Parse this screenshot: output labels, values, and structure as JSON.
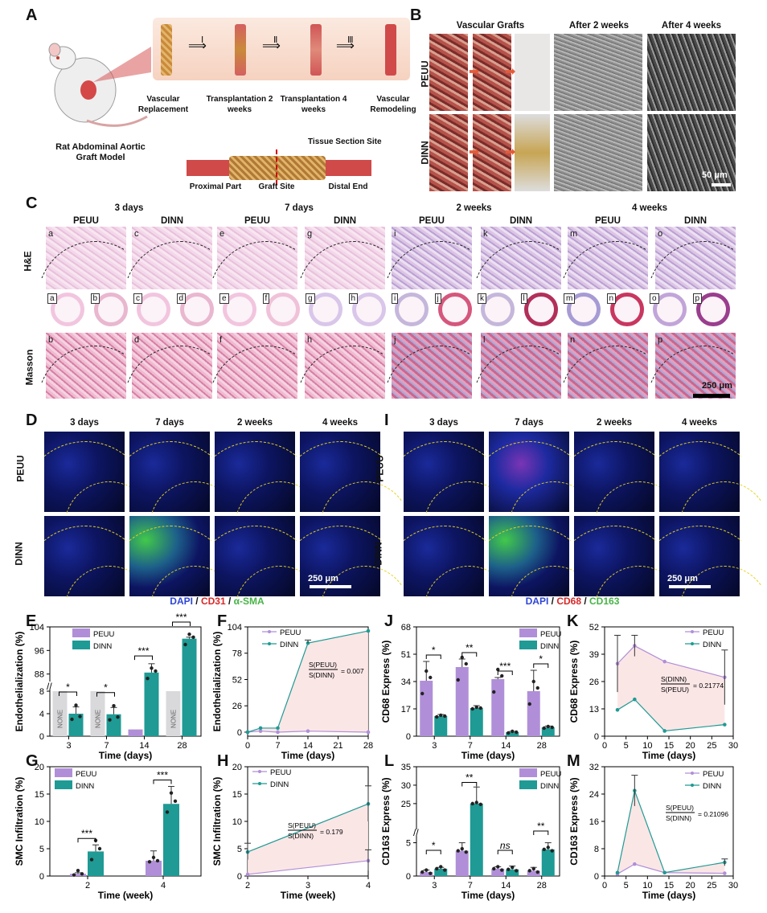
{
  "panel_letters": {
    "A": "A",
    "B": "B",
    "C": "C",
    "D": "D",
    "E": "E",
    "F": "F",
    "G": "G",
    "H": "H",
    "I": "I",
    "J": "J",
    "K": "K",
    "L": "L",
    "M": "M"
  },
  "panelA": {
    "model_title": "Rat Abdominal Aortic Graft Model",
    "step_1": "Ⅰ",
    "step_2": "Ⅱ",
    "step_3": "Ⅲ",
    "stage_1": "Vascular Replacement",
    "stage_2": "Transplantation 2 weeks",
    "stage_3": "Transplantation 4 weeks",
    "stage_4": "Vascular Remodeling",
    "tissue_site": "Tissue Section Site",
    "proximal": "Proximal Part",
    "graft_site": "Graft Site",
    "distal": "Distal End"
  },
  "panelB": {
    "col_1": "Vascular Grafts",
    "col_2": "After 2 weeks",
    "col_3": "After 4 weeks",
    "row_1": "PEUU",
    "row_2": "DINN",
    "scale": "50 μm"
  },
  "panelC": {
    "time_1": "3 days",
    "time_2": "7 days",
    "time_3": "2 weeks",
    "time_4": "4 weeks",
    "groups": [
      "PEUU",
      "DINN",
      "PEUU",
      "DINN",
      "PEUU",
      "DINN",
      "PEUU",
      "DINN"
    ],
    "row_he": "H&E",
    "row_masson": "Masson",
    "he_letters": [
      "a",
      "c",
      "e",
      "g",
      "i",
      "k",
      "m",
      "o"
    ],
    "masson_letters": [
      "b",
      "d",
      "f",
      "h",
      "j",
      "l",
      "n",
      "p"
    ],
    "overview_letters": [
      "a",
      "b",
      "c",
      "d",
      "e",
      "f",
      "g",
      "h",
      "i",
      "j",
      "k",
      "l",
      "m",
      "n",
      "o",
      "p"
    ],
    "scale": "250 μm"
  },
  "panelD": {
    "times": [
      "3 days",
      "7 days",
      "2 weeks",
      "4 weeks"
    ],
    "row_1": "PEUU",
    "row_2": "DINN",
    "scale": "250 μm",
    "legend_a": "DAPI",
    "legend_sep1": " / ",
    "legend_b": "CD31",
    "legend_sep2": " / ",
    "legend_c": "α-SMA"
  },
  "panelI": {
    "times": [
      "3 days",
      "7 days",
      "2 weeks",
      "4 weeks"
    ],
    "row_1": "PEUU",
    "row_2": "DINN",
    "scale": "250 μm",
    "legend_a": "DAPI",
    "legend_sep1": " / ",
    "legend_b": "CD68",
    "legend_sep2": " / ",
    "legend_c": "CD163"
  },
  "colors": {
    "peuu": "#b08fd8",
    "dinn": "#1f9a94",
    "fill": "#fbe3e3"
  },
  "chart_data": [
    {
      "id": "E",
      "type": "bar",
      "xlabel": "Time (days)",
      "ylabel": "Endothelialization (%)",
      "categories": [
        "3",
        "7",
        "14",
        "28"
      ],
      "series": [
        {
          "name": "PEUU",
          "values": [
            null,
            null,
            1.2,
            null
          ]
        },
        {
          "name": "DINN",
          "values": [
            4,
            3.9,
            88.5,
            100
          ]
        }
      ],
      "error": {
        "DINN": [
          1.2,
          1.2,
          3,
          0.5
        ],
        "PEUU": [
          null,
          null,
          0.3,
          null
        ]
      },
      "none_label": "NONE",
      "yticks_low": [
        "0",
        "4",
        "8"
      ],
      "yticks_high": [
        "88",
        "96",
        "104"
      ],
      "sig": [
        "*",
        "*",
        "***",
        "***"
      ]
    },
    {
      "id": "F",
      "type": "line",
      "xlabel": "Time (days)",
      "ylabel": "Endothelialization (%)",
      "x": [
        0,
        3,
        7,
        14,
        28
      ],
      "series": [
        {
          "name": "PEUU",
          "values": [
            0,
            1,
            0,
            1,
            0
          ]
        },
        {
          "name": "DINN",
          "values": [
            0,
            4,
            4,
            88,
            100
          ]
        }
      ],
      "xticks": [
        "0",
        "7",
        "14",
        "21",
        "28"
      ],
      "yticks": [
        "0",
        "26",
        "52",
        "78",
        "104"
      ],
      "ratio_num": "S(PEUU)",
      "ratio_den": "S(DINN)",
      "ratio_val": "= 0.007"
    },
    {
      "id": "G",
      "type": "bar",
      "xlabel": "Time (week)",
      "ylabel": "SMC Infiltration (%)",
      "categories": [
        "2",
        "4"
      ],
      "series": [
        {
          "name": "PEUU",
          "values": [
            0.4,
            2.8
          ]
        },
        {
          "name": "DINN",
          "values": [
            4.5,
            13.2
          ]
        }
      ],
      "error": {
        "PEUU": [
          0.2,
          1.8
        ],
        "DINN": [
          1.2,
          3.2
        ]
      },
      "yticks": [
        "0",
        "5",
        "10",
        "15",
        "20"
      ],
      "sig": [
        "***",
        "***"
      ]
    },
    {
      "id": "H",
      "type": "line",
      "xlabel": "Time (week)",
      "ylabel": "SMC Infiltration (%)",
      "x": [
        2,
        4
      ],
      "series": [
        {
          "name": "PEUU",
          "values": [
            0.3,
            2.8
          ]
        },
        {
          "name": "DINN",
          "values": [
            4.4,
            13.2
          ]
        }
      ],
      "xticks": [
        "2",
        "3",
        "4"
      ],
      "yticks": [
        "0",
        "5",
        "10",
        "15",
        "20"
      ],
      "ratio_num": "S(PEUU)",
      "ratio_den": "S(DINN)",
      "ratio_val": "= 0.179"
    },
    {
      "id": "J",
      "type": "bar",
      "xlabel": "Time (days)",
      "ylabel": "CD68 Express (%)",
      "categories": [
        "3",
        "7",
        "14",
        "28"
      ],
      "series": [
        {
          "name": "PEUU",
          "values": [
            34.5,
            43,
            35.5,
            28
          ]
        },
        {
          "name": "DINN",
          "values": [
            12.5,
            17.5,
            2.5,
            5.5
          ]
        }
      ],
      "error": {
        "PEUU": [
          12,
          5,
          1,
          13
        ],
        "DINN": [
          1,
          1.5,
          0.5,
          0.8
        ]
      },
      "yticks": [
        "0",
        "17",
        "34",
        "51",
        "68"
      ],
      "sig": [
        "*",
        "**",
        "***",
        "*"
      ]
    },
    {
      "id": "K",
      "type": "line",
      "xlabel": "Time (days)",
      "ylabel": "CD68 Express (%)",
      "x": [
        3,
        7,
        14,
        28
      ],
      "series": [
        {
          "name": "PEUU",
          "values": [
            34.5,
            43,
            35.5,
            28
          ]
        },
        {
          "name": "DINN",
          "values": [
            12.5,
            17.5,
            2.5,
            5.5
          ]
        }
      ],
      "xticks": [
        "0",
        "5",
        "10",
        "15",
        "20",
        "25",
        "30"
      ],
      "yticks": [
        "0",
        "13",
        "26",
        "39",
        "52"
      ],
      "ratio_num": "S(DINN)",
      "ratio_den": "S(PEUU)",
      "ratio_val": "= 0.21774"
    },
    {
      "id": "L",
      "type": "bar",
      "xlabel": "Time (days)",
      "ylabel": "CD163 Express (%)",
      "categories": [
        "3",
        "7",
        "14",
        "28"
      ],
      "series": [
        {
          "name": "PEUU",
          "values": [
            0.6,
            3.8,
            1.1,
            0.8
          ]
        },
        {
          "name": "DINN",
          "values": [
            1.1,
            25,
            1,
            4
          ]
        }
      ],
      "error": {
        "PEUU": [
          0.3,
          1.2,
          0.3,
          0.5
        ],
        "DINN": [
          0.2,
          4.5,
          0.5,
          1
        ]
      },
      "yticks": [
        "0",
        "5",
        "25",
        "30",
        "35"
      ],
      "sig": [
        "*",
        "**",
        "ns",
        "**"
      ]
    },
    {
      "id": "M",
      "type": "line",
      "xlabel": "Time (days)",
      "ylabel": "CD163 Express (%)",
      "x": [
        3,
        7,
        14,
        28
      ],
      "series": [
        {
          "name": "PEUU",
          "values": [
            0.6,
            3.5,
            1,
            0.8
          ]
        },
        {
          "name": "DINN",
          "values": [
            1,
            25,
            1,
            4
          ]
        }
      ],
      "xticks": [
        "0",
        "5",
        "10",
        "15",
        "20",
        "25",
        "30"
      ],
      "yticks": [
        "0",
        "8",
        "16",
        "24",
        "32"
      ],
      "ratio_num": "S(PEUU)",
      "ratio_den": "S(DINN)",
      "ratio_val": "= 0.21096"
    }
  ]
}
